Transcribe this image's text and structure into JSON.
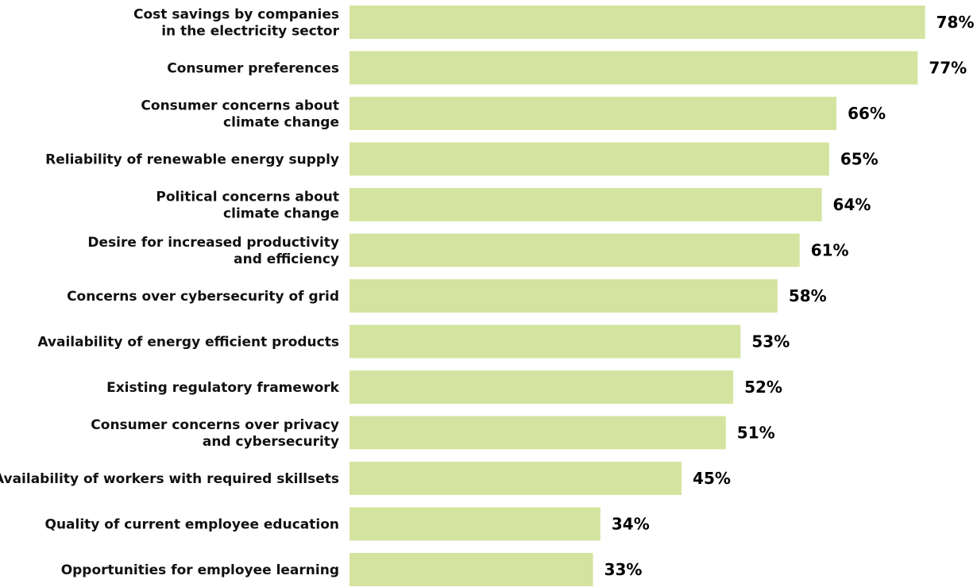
{
  "chart_data": {
    "type": "bar",
    "orientation": "horizontal",
    "categories": [
      "Cost savings by companies in the electricity sector",
      "Consumer preferences",
      "Consumer concerns about climate change",
      "Reliability of renewable energy supply",
      "Political concerns about climate change",
      "Desire for increased productivity and efficiency",
      "Concerns over cybersecurity of grid",
      "Availability of energy efficient products",
      "Existing regulatory framework",
      "Consumer concerns over privacy and cybersecurity",
      "Availability of workers with required skillsets",
      "Quality of current employee education",
      "Opportunities for employee learning"
    ],
    "category_lines": [
      [
        "Cost savings by companies",
        "in the electricity sector"
      ],
      [
        "Consumer preferences"
      ],
      [
        "Consumer concerns about",
        "climate change"
      ],
      [
        "Reliability of renewable energy supply"
      ],
      [
        "Political concerns about",
        "climate change"
      ],
      [
        "Desire for increased productivity",
        "and efficiency"
      ],
      [
        "Concerns over cybersecurity of grid"
      ],
      [
        "Availability of energy efficient products"
      ],
      [
        "Existing regulatory framework"
      ],
      [
        "Consumer concerns over privacy",
        "and cybersecurity"
      ],
      [
        "Availability of workers with required skillsets"
      ],
      [
        "Quality of current employee education"
      ],
      [
        "Opportunities for employee learning"
      ]
    ],
    "values": [
      78,
      77,
      66,
      65,
      64,
      61,
      58,
      53,
      52,
      51,
      45,
      34,
      33
    ],
    "value_labels": [
      "78%",
      "77%",
      "66%",
      "65%",
      "64%",
      "61%",
      "58%",
      "53%",
      "52%",
      "51%",
      "45%",
      "34%",
      "33%"
    ],
    "xlim": [
      0,
      100
    ],
    "bar_color": "#d4e4a0",
    "grid": false,
    "legend": "none"
  }
}
